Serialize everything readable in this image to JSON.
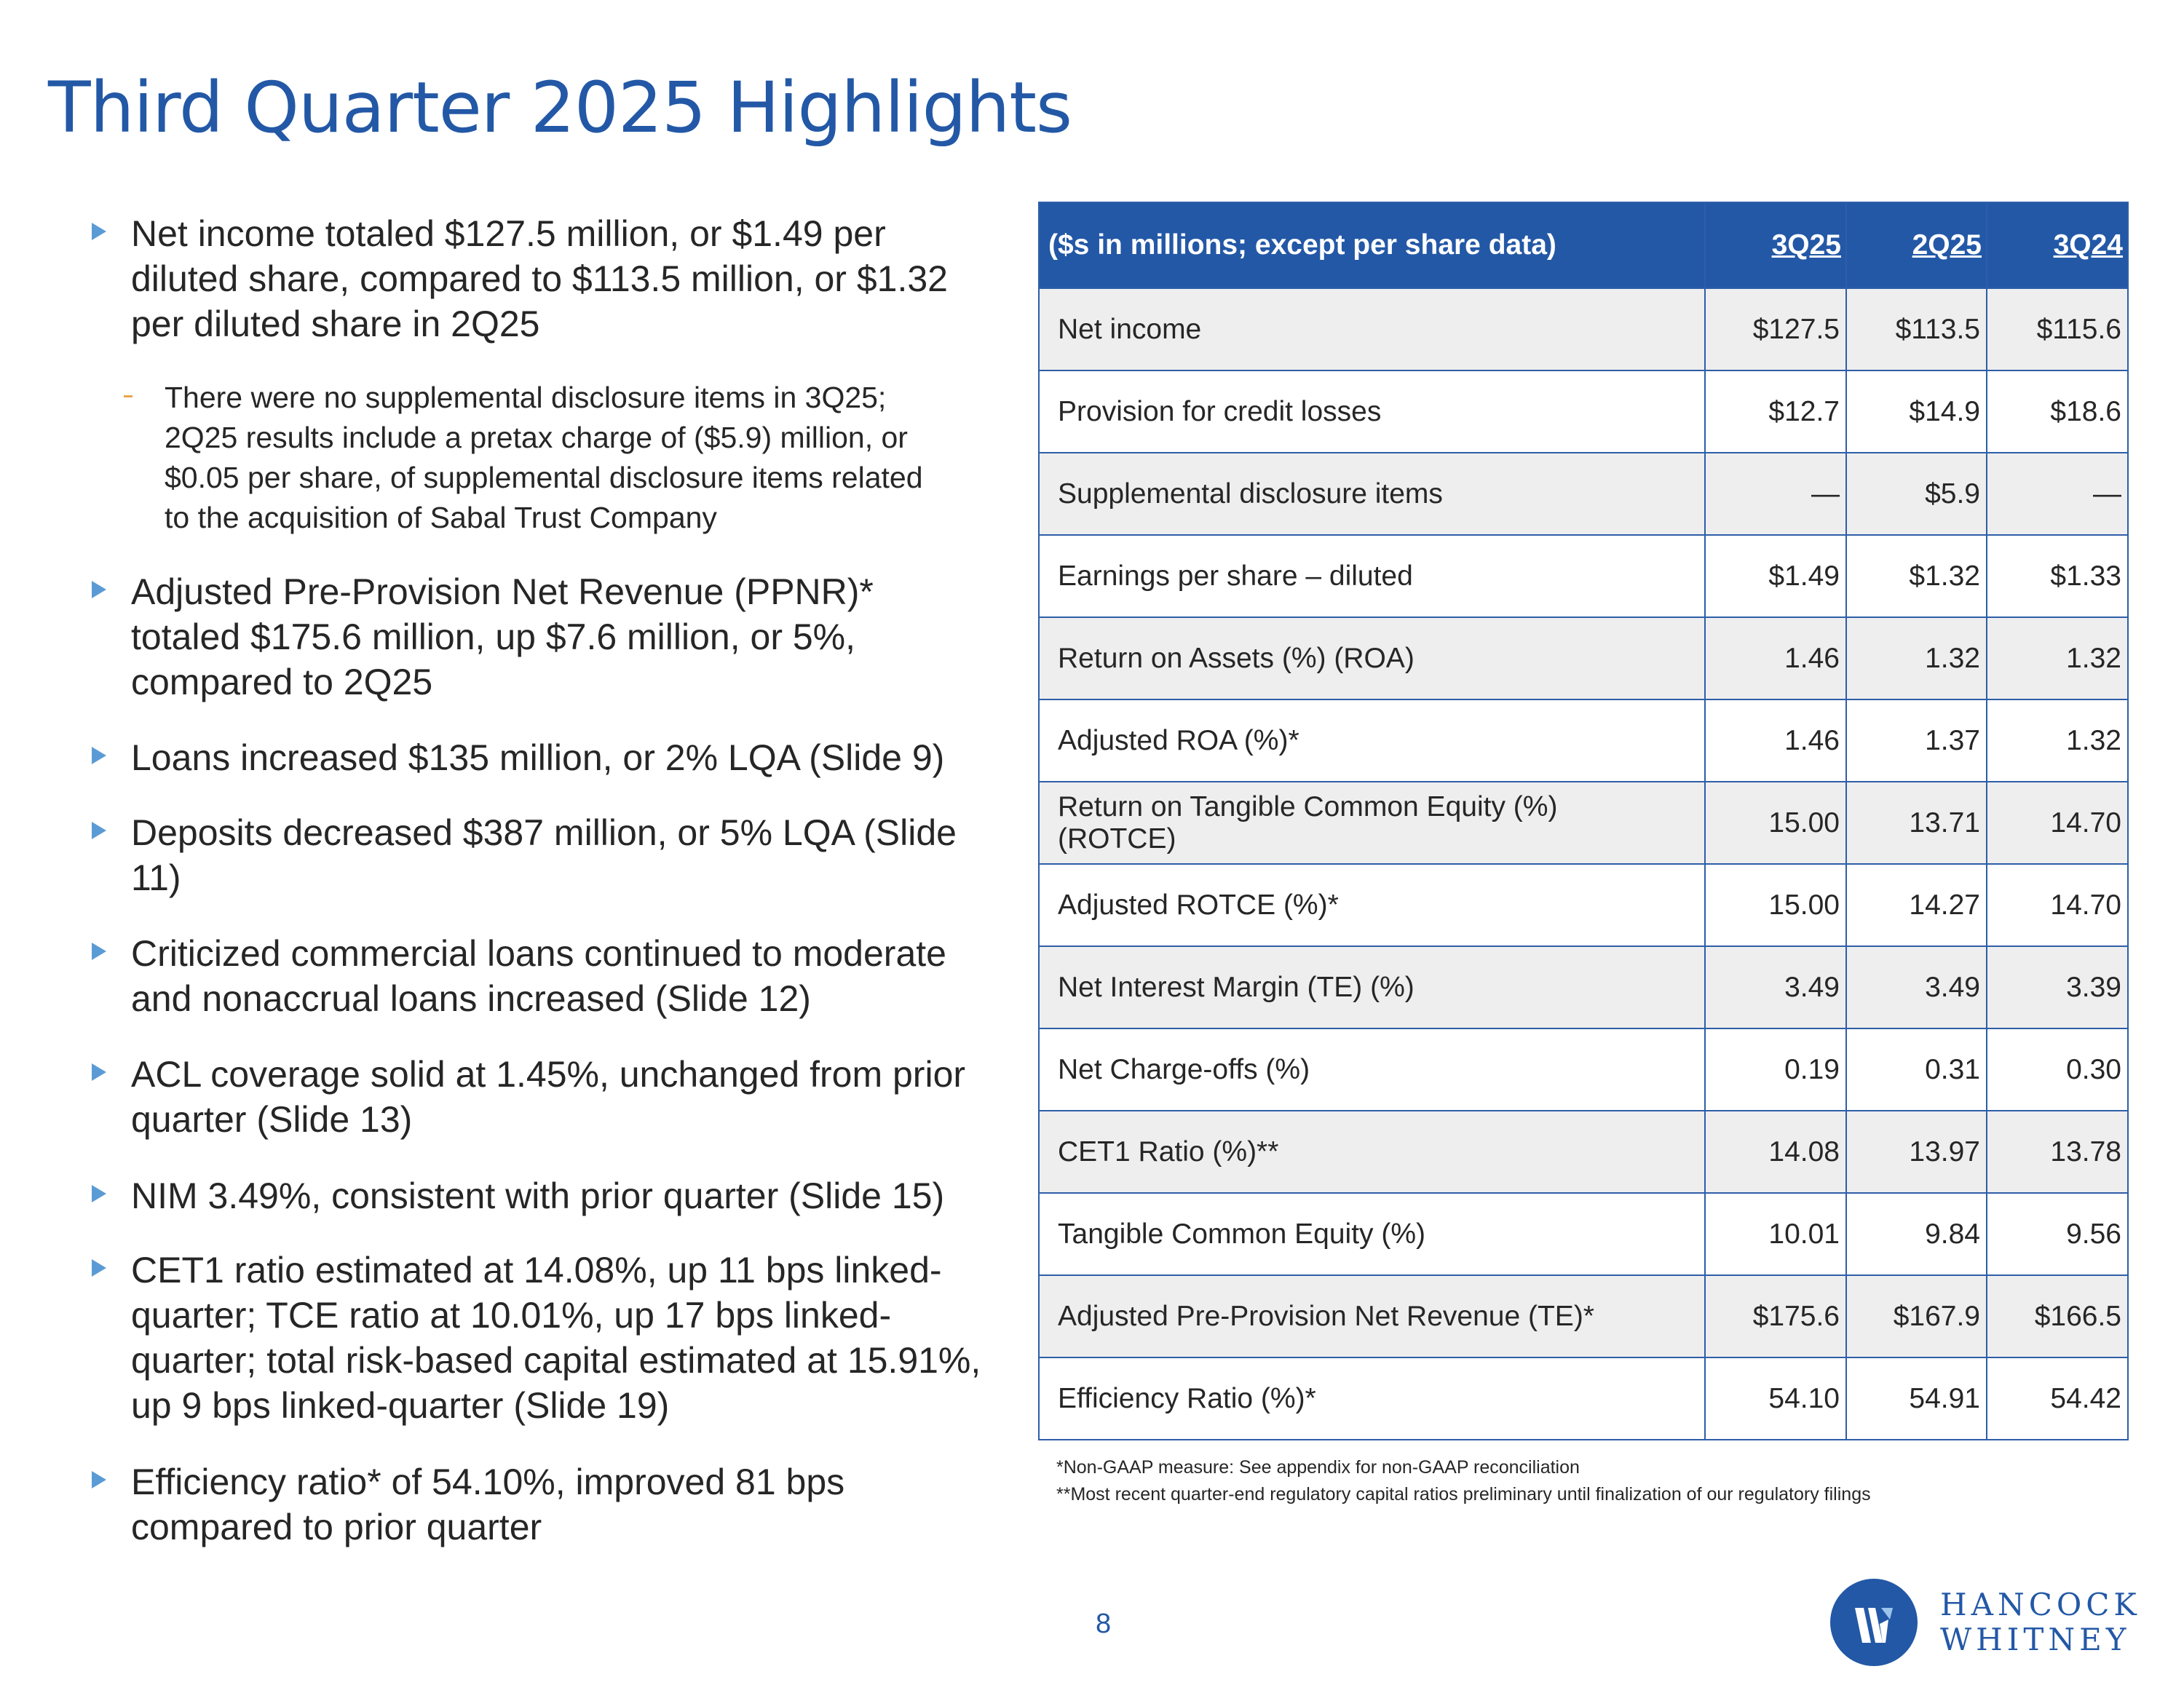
{
  "title": "Third Quarter 2025 Highlights",
  "bullets": [
    "Net income totaled $127.5 million, or $1.49 per\ndiluted share, compared to $113.5 million, or $1.32\nper diluted share in 2Q25",
    "Adjusted Pre-Provision Net Revenue (PPNR)*\ntotaled $175.6 million, up $7.6 million, or 5%,\ncompared to 2Q25",
    "Loans increased $135 million, or 2% LQA (Slide 9)",
    "Deposits decreased $387 million, or 5% LQA (Slide\n11)",
    "Criticized commercial loans continued to moderate\nand nonaccrual loans increased (Slide 12)",
    "ACL coverage solid at 1.45%, unchanged from prior\nquarter (Slide 13)",
    "NIM 3.49%, consistent with prior quarter (Slide 15)",
    "CET1 ratio estimated at 14.08%, up 11 bps linked-\nquarter; TCE ratio at 10.01%, up 17 bps linked-\nquarter; total risk-based capital estimated at 15.91%,\nup 9 bps linked-quarter (Slide 19)",
    "Efficiency ratio* of 54.10%, improved 81 bps\ncompared to prior quarter"
  ],
  "sub_bullet": "There were no supplemental disclosure items in 3Q25;\n2Q25 results include a pretax charge of ($5.9) million, or\n$0.05 per share, of supplemental disclosure items related\nto the acquisition of Sabal Trust Company",
  "table": {
    "header": "($s in millions; except per share data)",
    "columns": [
      "3Q25",
      "2Q25",
      "3Q24"
    ],
    "rows": [
      {
        "label": "Net income",
        "values": [
          "$127.5",
          "$113.5",
          "$115.6"
        ]
      },
      {
        "label": "Provision for credit losses",
        "values": [
          "$12.7",
          "$14.9",
          "$18.6"
        ]
      },
      {
        "label": "Supplemental disclosure items",
        "values": [
          "—",
          "$5.9",
          "—"
        ]
      },
      {
        "label": "Earnings per share – diluted",
        "values": [
          "$1.49",
          "$1.32",
          "$1.33"
        ]
      },
      {
        "label": "Return on Assets (%) (ROA)",
        "values": [
          "1.46",
          "1.32",
          "1.32"
        ]
      },
      {
        "label": "Adjusted ROA (%)*",
        "values": [
          "1.46",
          "1.37",
          "1.32"
        ]
      },
      {
        "label": "Return on Tangible Common Equity (%) (ROTCE)",
        "values": [
          "15.00",
          "13.71",
          "14.70"
        ]
      },
      {
        "label": "Adjusted ROTCE (%)*",
        "values": [
          "15.00",
          "14.27",
          "14.70"
        ]
      },
      {
        "label": "Net Interest Margin (TE) (%)",
        "values": [
          "3.49",
          "3.49",
          "3.39"
        ]
      },
      {
        "label": "Net Charge-offs (%)",
        "values": [
          "0.19",
          "0.31",
          "0.30"
        ]
      },
      {
        "label": "CET1 Ratio (%)**",
        "values": [
          "14.08",
          "13.97",
          "13.78"
        ]
      },
      {
        "label": "Tangible Common Equity (%)",
        "values": [
          "10.01",
          "9.84",
          "9.56"
        ]
      },
      {
        "label": "Adjusted Pre-Provision Net Revenue (TE)*",
        "values": [
          "$175.6",
          "$167.9",
          "$166.5"
        ]
      },
      {
        "label": "Efficiency Ratio (%)*",
        "values": [
          "54.10",
          "54.91",
          "54.42"
        ]
      }
    ]
  },
  "footnotes": [
    "*Non-GAAP measure: See appendix for non-GAAP reconciliation",
    "**Most recent quarter-end regulatory capital ratios preliminary until finalization of our regulatory filings"
  ],
  "page_number": "8",
  "logo": {
    "line1": "HANCOCK",
    "line2": "WHITNEY"
  },
  "colors": {
    "brand_blue": "#2358a6",
    "arrow": "#5b9bd5",
    "row_gray": "#eeeeee"
  }
}
